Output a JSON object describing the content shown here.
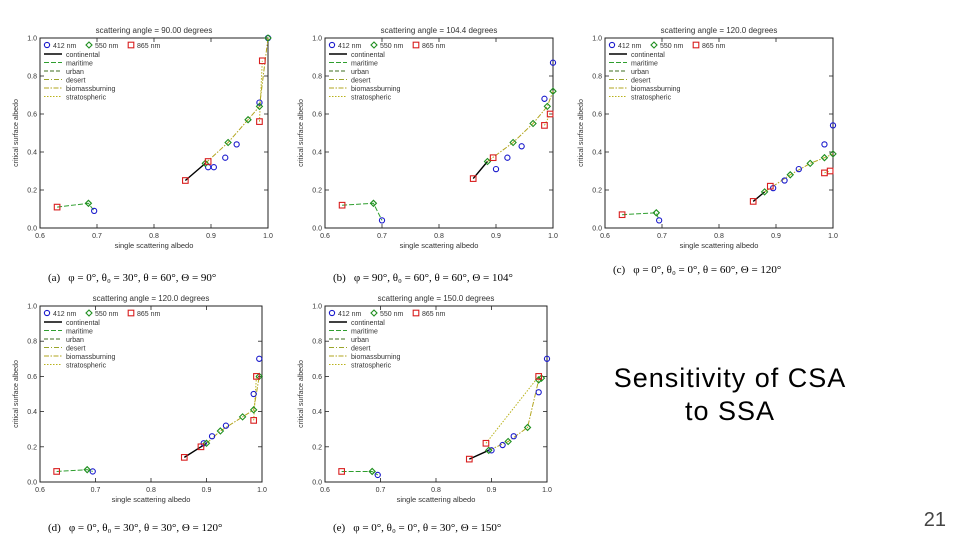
{
  "slide": {
    "title": "Sensitivity of CSA\nto SSA",
    "page_number": "21"
  },
  "colors": {
    "412": "#1a1acc",
    "550": "#1f8f1f",
    "865": "#d81e1e",
    "continental": "#000000",
    "maritime": "#2e9e2e",
    "urban": "#3d6e1f",
    "desert": "#9aa52a",
    "biomassburning": "#b2a41c",
    "stratospheric": "#b9b21b"
  },
  "legend": {
    "wavelengths": [
      "412 nm",
      "550 nm",
      "865 nm"
    ],
    "models": [
      "continental",
      "maritime",
      "urban",
      "desert",
      "biomassburning",
      "stratospheric"
    ]
  },
  "chart_data": [
    {
      "type": "scatter",
      "title": "scattering angle = 90.00 degrees",
      "xlabel": "single scattering albedo",
      "ylabel": "critical surface albedo",
      "caption_tag": "(a)",
      "caption": "φ = 0°, θ₀ = 30°, θ = 60°, Θ = 90°",
      "xlim": [
        0.6,
        1.0
      ],
      "ylim": [
        0.0,
        1.0
      ],
      "xticks": [
        "0.6",
        "0.7",
        "0.8",
        "0.9",
        "1.0"
      ],
      "yticks": [
        "0.0",
        "0.2",
        "0.4",
        "0.6",
        "0.8",
        "1.0"
      ],
      "grid": false,
      "legend_position": "top-left",
      "series": [
        {
          "name": "412 nm",
          "x": [
            0.695,
            0.895,
            0.905,
            0.925,
            0.945,
            0.985,
            1.0
          ],
          "y": [
            0.09,
            0.32,
            0.32,
            0.37,
            0.44,
            0.66,
            1.0
          ]
        },
        {
          "name": "550 nm",
          "x": [
            0.685,
            0.89,
            0.93,
            0.965,
            0.985,
            1.0
          ],
          "y": [
            0.13,
            0.34,
            0.45,
            0.57,
            0.64,
            1.0
          ]
        },
        {
          "name": "865 nm",
          "x": [
            0.63,
            0.855,
            0.895,
            0.985,
            0.99
          ],
          "y": [
            0.11,
            0.25,
            0.35,
            0.56,
            0.88
          ]
        }
      ]
    },
    {
      "type": "scatter",
      "title": "scattering angle = 104.4 degrees",
      "xlabel": "single scattering albedo",
      "ylabel": "critical surface albedo",
      "caption_tag": "(b)",
      "caption": "φ = 90°, θ₀ = 60°, θ = 60°, Θ = 104°",
      "xlim": [
        0.6,
        1.0
      ],
      "ylim": [
        0.0,
        1.0
      ],
      "xticks": [
        "0.6",
        "0.7",
        "0.8",
        "0.9",
        "1.0"
      ],
      "yticks": [
        "0.0",
        "0.2",
        "0.4",
        "0.6",
        "0.8",
        "1.0"
      ],
      "grid": false,
      "legend_position": "top-left",
      "series": [
        {
          "name": "412 nm",
          "x": [
            0.7,
            0.9,
            0.92,
            0.945,
            0.985,
            1.0
          ],
          "y": [
            0.04,
            0.31,
            0.37,
            0.43,
            0.68,
            0.87
          ]
        },
        {
          "name": "550 nm",
          "x": [
            0.685,
            0.885,
            0.93,
            0.965,
            0.99,
            1.0
          ],
          "y": [
            0.13,
            0.35,
            0.45,
            0.55,
            0.64,
            0.72
          ]
        },
        {
          "name": "865 nm",
          "x": [
            0.63,
            0.86,
            0.895,
            0.985,
            0.995
          ],
          "y": [
            0.12,
            0.26,
            0.37,
            0.54,
            0.6
          ]
        }
      ]
    },
    {
      "type": "scatter",
      "title": "scattering angle = 120.0 degrees",
      "xlabel": "single scattering albedo",
      "ylabel": "critical surface albedo",
      "caption_tag": "(c)",
      "caption": "φ = 0°, θ₀ = 0°, θ = 60°, Θ = 120°",
      "xlim": [
        0.6,
        1.0
      ],
      "ylim": [
        0.0,
        1.0
      ],
      "xticks": [
        "0.6",
        "0.7",
        "0.8",
        "0.9",
        "1.0"
      ],
      "yticks": [
        "0.0",
        "0.2",
        "0.4",
        "0.6",
        "0.8",
        "1.0"
      ],
      "grid": false,
      "legend_position": "top-left",
      "series": [
        {
          "name": "412 nm",
          "x": [
            0.695,
            0.895,
            0.915,
            0.94,
            0.985,
            1.0
          ],
          "y": [
            0.04,
            0.21,
            0.25,
            0.31,
            0.44,
            0.54
          ]
        },
        {
          "name": "550 nm",
          "x": [
            0.69,
            0.88,
            0.925,
            0.96,
            0.985,
            1.0
          ],
          "y": [
            0.08,
            0.19,
            0.28,
            0.34,
            0.37,
            0.39
          ]
        },
        {
          "name": "865 nm",
          "x": [
            0.63,
            0.86,
            0.89,
            0.985,
            0.995
          ],
          "y": [
            0.07,
            0.14,
            0.22,
            0.29,
            0.3
          ]
        }
      ]
    },
    {
      "type": "scatter",
      "title": "scattering angle = 120.0 degrees",
      "xlabel": "single scattering albedo",
      "ylabel": "critical surface albedo",
      "caption_tag": "(d)",
      "caption": "φ = 0°, θ₀ = 30°, θ = 30°, Θ = 120°",
      "xlim": [
        0.6,
        1.0
      ],
      "ylim": [
        0.0,
        1.0
      ],
      "xticks": [
        "0.6",
        "0.7",
        "0.8",
        "0.9",
        "1.0"
      ],
      "yticks": [
        "0.0",
        "0.2",
        "0.4",
        "0.6",
        "0.8",
        "1.0"
      ],
      "grid": false,
      "legend_position": "top-left",
      "series": [
        {
          "name": "412 nm",
          "x": [
            0.695,
            0.895,
            0.91,
            0.935,
            0.985,
            0.995
          ],
          "y": [
            0.06,
            0.22,
            0.26,
            0.32,
            0.5,
            0.7
          ]
        },
        {
          "name": "550 nm",
          "x": [
            0.685,
            0.9,
            0.925,
            0.965,
            0.985,
            0.995
          ],
          "y": [
            0.07,
            0.22,
            0.29,
            0.37,
            0.41,
            0.6
          ]
        },
        {
          "name": "865 nm",
          "x": [
            0.63,
            0.86,
            0.89,
            0.985,
            0.99
          ],
          "y": [
            0.06,
            0.14,
            0.2,
            0.35,
            0.6
          ]
        }
      ]
    },
    {
      "type": "scatter",
      "title": "scattering angle = 150.0 degrees",
      "xlabel": "single scattering albedo",
      "ylabel": "critical surface albedo",
      "caption_tag": "(e)",
      "caption": "φ = 0°, θ₀ = 0°, θ = 30°, Θ = 150°",
      "xlim": [
        0.6,
        1.0
      ],
      "ylim": [
        0.0,
        1.0
      ],
      "xticks": [
        "0.6",
        "0.7",
        "0.8",
        "0.9",
        "1.0"
      ],
      "yticks": [
        "0.0",
        "0.2",
        "0.4",
        "0.6",
        "0.8",
        "1.0"
      ],
      "grid": false,
      "legend_position": "top-left",
      "series": [
        {
          "name": "412 nm",
          "x": [
            0.695,
            0.9,
            0.92,
            0.94,
            0.985,
            1.0
          ],
          "y": [
            0.04,
            0.18,
            0.21,
            0.26,
            0.51,
            0.7
          ]
        },
        {
          "name": "550 nm",
          "x": [
            0.685,
            0.895,
            0.93,
            0.965,
            0.985,
            0.99
          ],
          "y": [
            0.06,
            0.18,
            0.23,
            0.31,
            0.58,
            0.59
          ]
        },
        {
          "name": "865 nm",
          "x": [
            0.63,
            0.86,
            0.89,
            0.985
          ],
          "y": [
            0.06,
            0.13,
            0.22,
            0.6
          ]
        }
      ]
    }
  ]
}
